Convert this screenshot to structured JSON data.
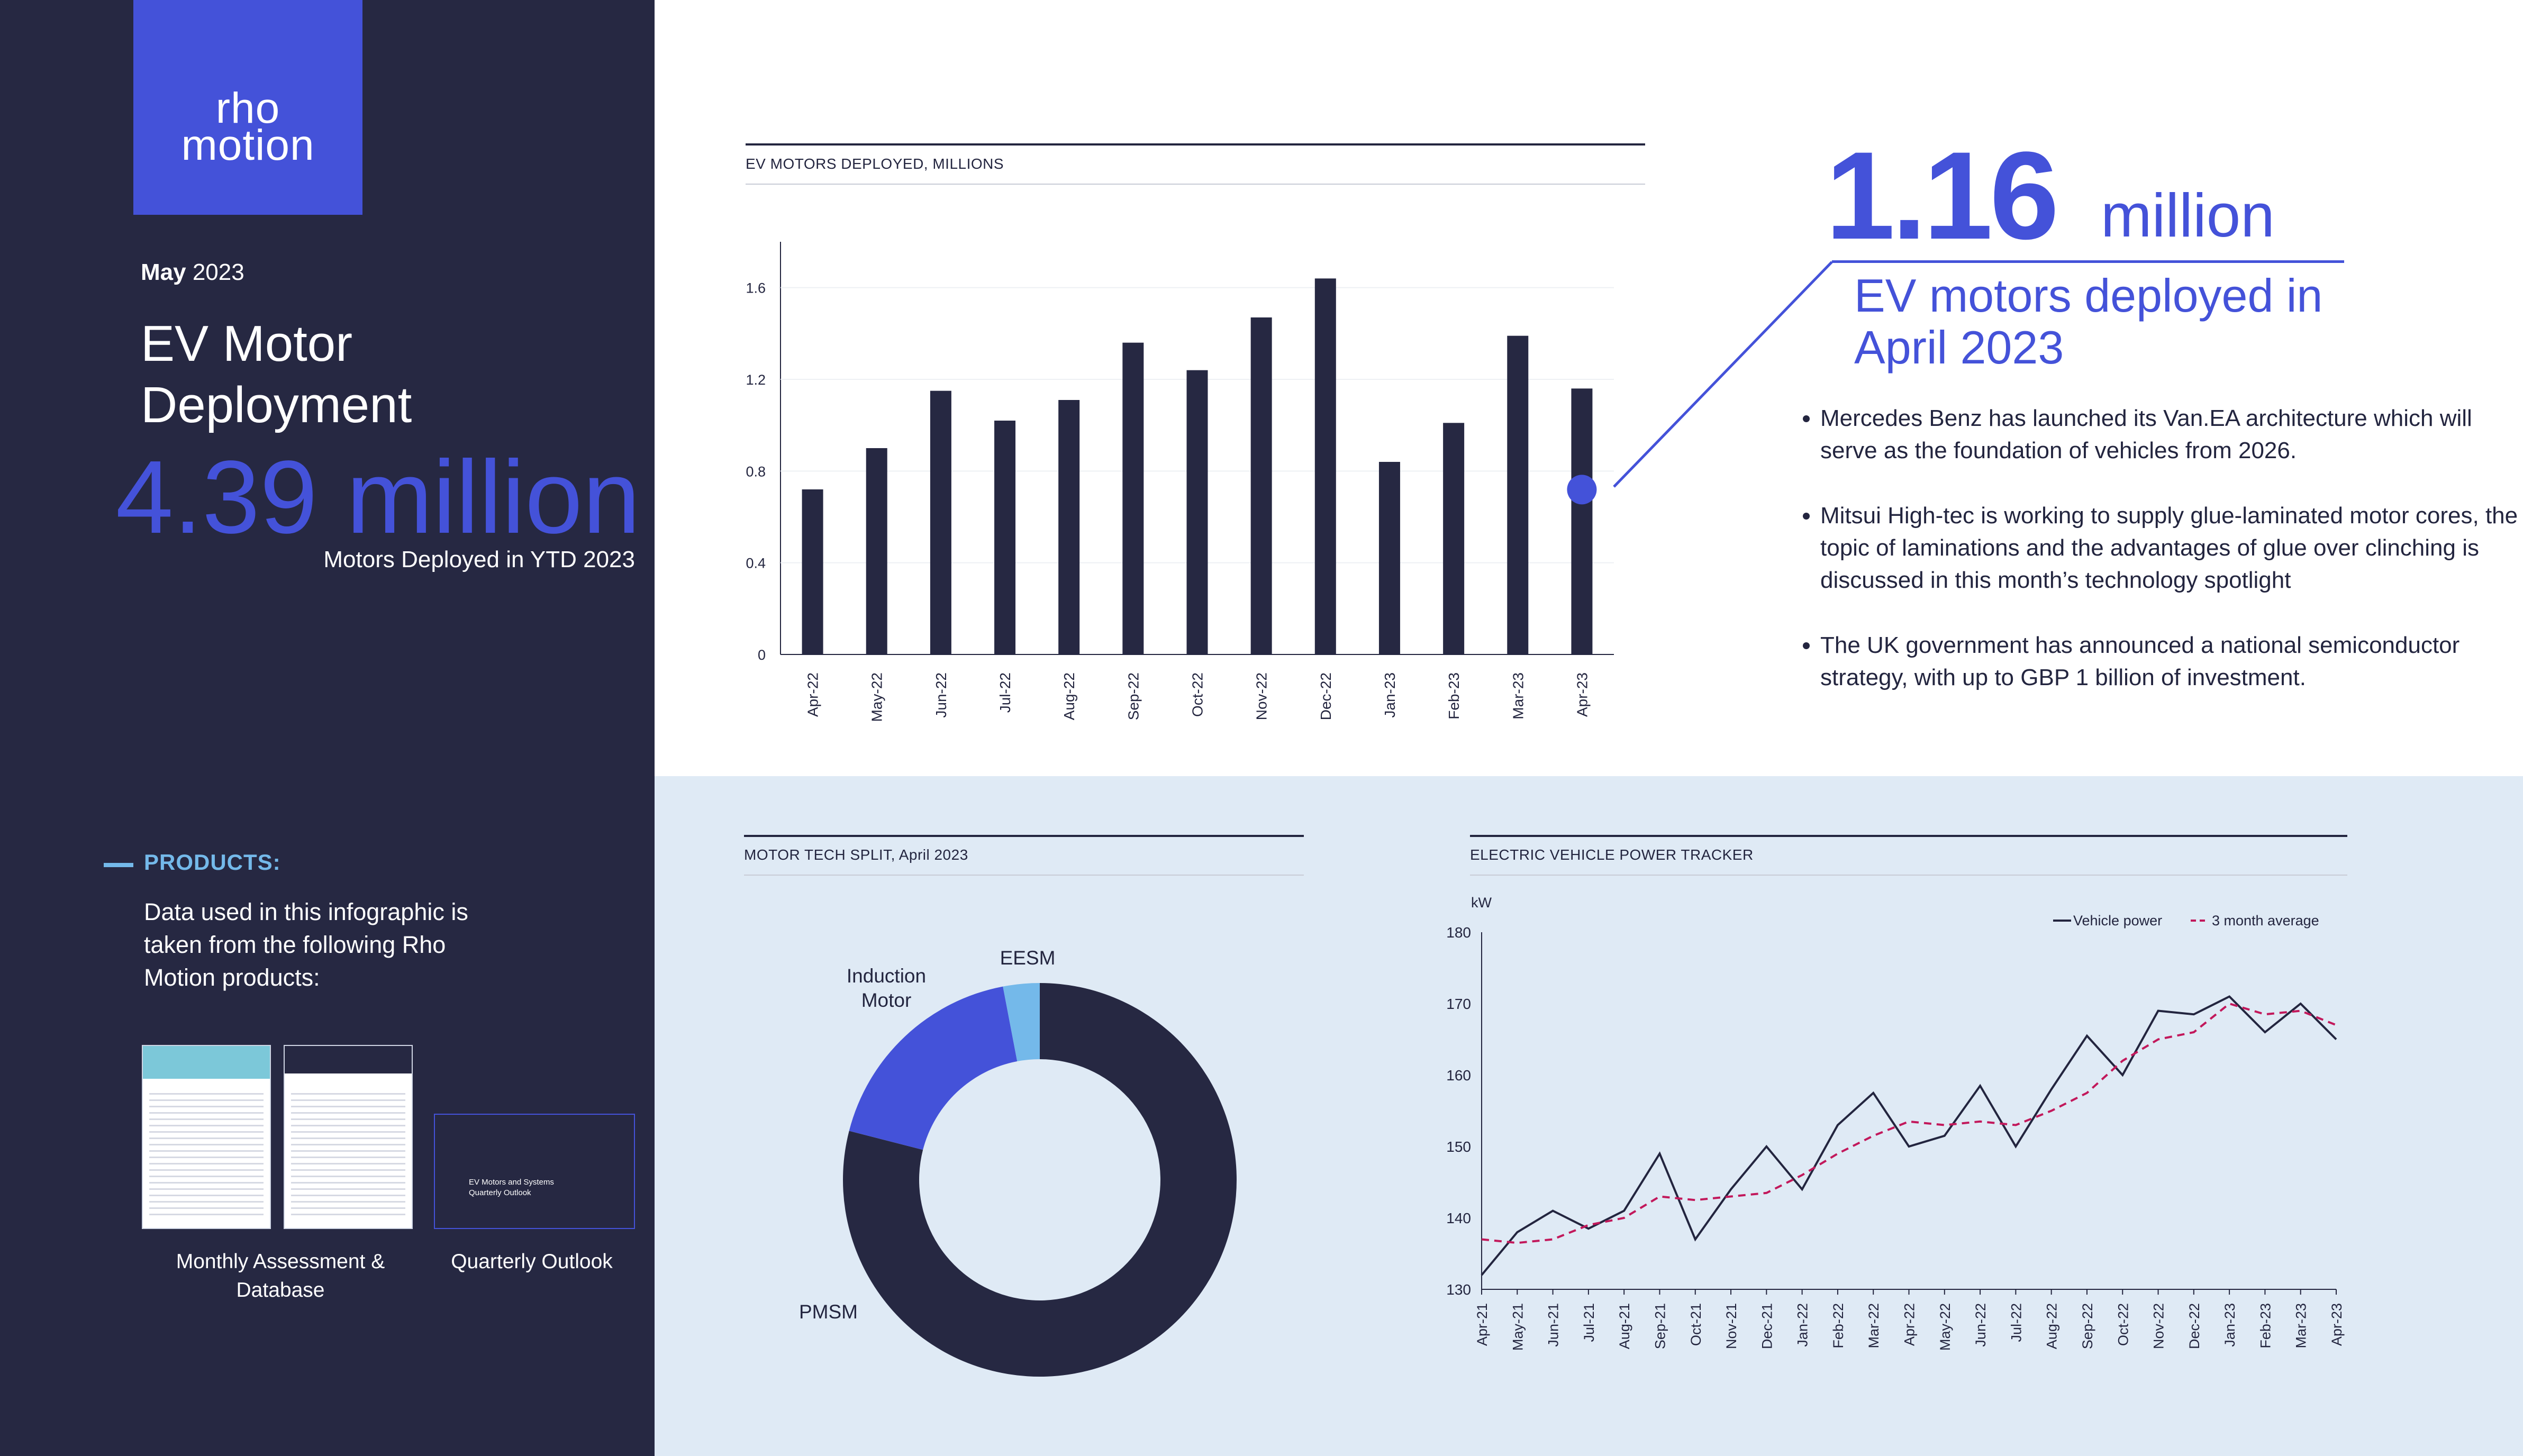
{
  "brand": {
    "logo_line1": "rho",
    "logo_line2": "motion"
  },
  "sidebar": {
    "date_month": "May",
    "date_year": "2023",
    "title": "EV Motor Deployment",
    "ytd_value": "4.39 million",
    "ytd_label": "Motors Deployed in YTD 2023",
    "products_heading": "PRODUCTS:",
    "products_desc": "Data used in this infographic is taken from the following Rho Motion products:",
    "product_1_caption": "Monthly Assessment & Database",
    "product_2_caption": "Quarterly Outlook",
    "product_2_cover_text": "EV Motors and Systems Quarterly Outlook"
  },
  "highlight": {
    "value": "1.16",
    "unit": "million",
    "caption": "EV motors deployed in April 2023"
  },
  "news": [
    "Mercedes Benz has launched its Van.EA architecture which will serve as the foundation of vehicles from 2026.",
    "Mitsui High-tec is working to supply glue-laminated motor cores, the topic of laminations and the advantages of glue over clinching is discussed in this month’s technology spotlight",
    "The UK government has announced a national semiconductor strategy, with up to GBP 1 billion of investment."
  ],
  "colors": {
    "navy": "#262842",
    "accent": "#4452d9",
    "light_blue": "#74b9ea",
    "panel_bg": "#dfeaf5",
    "dashed_avg": "#c2185b"
  },
  "chart_data": [
    {
      "type": "bar",
      "title": "EV MOTORS DEPLOYED, MILLIONS",
      "categories": [
        "Apr-22",
        "May-22",
        "Jun-22",
        "Jul-22",
        "Aug-22",
        "Sep-22",
        "Oct-22",
        "Nov-22",
        "Dec-22",
        "Jan-23",
        "Feb-23",
        "Mar-23",
        "Apr-23"
      ],
      "values": [
        0.72,
        0.9,
        1.15,
        1.02,
        1.11,
        1.36,
        1.24,
        1.47,
        1.64,
        0.84,
        1.01,
        1.39,
        1.16
      ],
      "yticks": [
        "0",
        "0.4",
        "0.8",
        "1.2",
        "1.6"
      ],
      "ylim": [
        0,
        1.8
      ],
      "highlight_category": "Apr-23"
    },
    {
      "type": "pie",
      "title": "MOTOR TECH SPLIT, April 2023",
      "labels": [
        "PMSM",
        "Induction Motor",
        "EESM"
      ],
      "values": [
        79,
        18,
        3
      ],
      "colors": [
        "#262842",
        "#4452d9",
        "#74b9ea"
      ],
      "donut": true
    },
    {
      "type": "line",
      "title": "ELECTRIC VEHICLE POWER TRACKER",
      "ylabel": "kW",
      "ylim": [
        130,
        180
      ],
      "yticks": [
        "130",
        "140",
        "150",
        "160",
        "170",
        "180"
      ],
      "x": [
        "Apr-21",
        "May-21",
        "Jun-21",
        "Jul-21",
        "Aug-21",
        "Sep-21",
        "Oct-21",
        "Nov-21",
        "Dec-21",
        "Jan-22",
        "Feb-22",
        "Mar-22",
        "Apr-22",
        "May-22",
        "Jun-22",
        "Jul-22",
        "Aug-22",
        "Sep-22",
        "Oct-22",
        "Nov-22",
        "Dec-22",
        "Jan-23",
        "Feb-23",
        "Mar-23",
        "Apr-23"
      ],
      "legend_position": "top-right",
      "series": [
        {
          "name": "Vehicle power",
          "style": "solid",
          "values": [
            132,
            138,
            141,
            138.5,
            141,
            149,
            137,
            144,
            150,
            144,
            153,
            157.5,
            150,
            151.5,
            158.5,
            150,
            158,
            165.5,
            160,
            169,
            168.5,
            171,
            166,
            170,
            165
          ]
        },
        {
          "name": "3 month average",
          "style": "dashed",
          "values": [
            137,
            136.5,
            137,
            139,
            140,
            143,
            142.5,
            143,
            143.5,
            146,
            149,
            151.5,
            153.5,
            153,
            153.5,
            153,
            155,
            157.5,
            162,
            165,
            166,
            170,
            168.5,
            169,
            167
          ]
        }
      ]
    }
  ]
}
